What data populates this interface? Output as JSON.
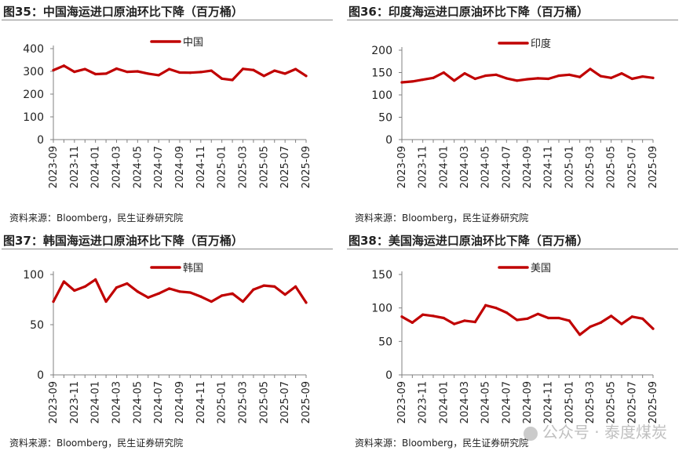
{
  "source_text": "资料来源：Bloomberg，民生证券研究院",
  "watermark": "公众号 · 泰度煤炭",
  "colors": {
    "series": "#c00000",
    "axis": "#808080",
    "text": "#222222"
  },
  "chart_data": [
    {
      "type": "line",
      "title": "图35：中国海运进口原油环比下降（百万桶）",
      "legend": "中国",
      "legend_position": "top-center",
      "ylim": [
        0,
        400
      ],
      "yticks": [
        0,
        100,
        200,
        300,
        400
      ],
      "x": [
        "2023-09",
        "2023-10",
        "2023-11",
        "2023-12",
        "2024-01",
        "2024-02",
        "2024-03",
        "2024-04",
        "2024-05",
        "2024-06",
        "2024-07",
        "2024-08",
        "2024-09",
        "2024-10",
        "2024-11",
        "2024-12",
        "2025-01",
        "2025-02",
        "2025-03",
        "2025-04",
        "2025-05",
        "2025-06",
        "2025-07",
        "2025-08",
        "2025-09"
      ],
      "xticklabels": [
        "2023-09",
        "2023-11",
        "2024-01",
        "2024-03",
        "2024-05",
        "2024-07",
        "2024-09",
        "2024-11",
        "2025-01",
        "2025-03",
        "2025-05",
        "2025-07",
        "2025-09"
      ],
      "values": [
        305,
        325,
        298,
        310,
        288,
        290,
        312,
        298,
        300,
        290,
        283,
        310,
        295,
        294,
        297,
        303,
        268,
        262,
        311,
        306,
        280,
        303,
        290,
        310,
        280
      ]
    },
    {
      "type": "line",
      "title": "图36：印度海运进口原油环比下降（百万桶）",
      "legend": "印度",
      "legend_position": "top-center",
      "ylim": [
        0,
        200
      ],
      "yticks": [
        0,
        50,
        100,
        150,
        200
      ],
      "x": [
        "2023-09",
        "2023-10",
        "2023-11",
        "2023-12",
        "2024-01",
        "2024-02",
        "2024-03",
        "2024-04",
        "2024-05",
        "2024-06",
        "2024-07",
        "2024-08",
        "2024-09",
        "2024-10",
        "2024-11",
        "2024-12",
        "2025-01",
        "2025-02",
        "2025-03",
        "2025-04",
        "2025-05",
        "2025-06",
        "2025-07",
        "2025-08",
        "2025-09"
      ],
      "xticklabels": [
        "2023-09",
        "2023-11",
        "2024-01",
        "2024-03",
        "2024-05",
        "2024-07",
        "2024-09",
        "2024-11",
        "2025-01",
        "2025-03",
        "2025-05",
        "2025-07",
        "2025-09"
      ],
      "values": [
        128,
        130,
        134,
        138,
        150,
        132,
        148,
        136,
        143,
        145,
        137,
        132,
        135,
        137,
        136,
        143,
        145,
        140,
        158,
        142,
        138,
        148,
        136,
        141,
        138
      ]
    },
    {
      "type": "line",
      "title": "图37：韩国海运进口原油环比下降（百万桶）",
      "legend": "韩国",
      "legend_position": "top-center",
      "ylim": [
        0,
        100
      ],
      "yticks": [
        0,
        50,
        100
      ],
      "x": [
        "2023-09",
        "2023-10",
        "2023-11",
        "2023-12",
        "2024-01",
        "2024-02",
        "2024-03",
        "2024-04",
        "2024-05",
        "2024-06",
        "2024-07",
        "2024-08",
        "2024-09",
        "2024-10",
        "2024-11",
        "2024-12",
        "2025-01",
        "2025-02",
        "2025-03",
        "2025-04",
        "2025-05",
        "2025-06",
        "2025-07",
        "2025-08",
        "2025-09"
      ],
      "xticklabels": [
        "2023-09",
        "2023-11",
        "2024-01",
        "2024-03",
        "2024-05",
        "2024-07",
        "2024-09",
        "2024-11",
        "2025-01",
        "2025-03",
        "2025-05",
        "2025-07",
        "2025-09"
      ],
      "values": [
        73,
        93,
        84,
        88,
        95,
        73,
        87,
        91,
        83,
        77,
        81,
        86,
        83,
        82,
        78,
        73,
        79,
        81,
        73,
        85,
        89,
        88,
        80,
        88,
        72
      ]
    },
    {
      "type": "line",
      "title": "图38：美国海运进口原油环比下降（百万桶）",
      "legend": "美国",
      "legend_position": "top-center",
      "ylim": [
        0,
        150
      ],
      "yticks": [
        0,
        50,
        100,
        150
      ],
      "x": [
        "2023-09",
        "2023-10",
        "2023-11",
        "2023-12",
        "2024-01",
        "2024-02",
        "2024-03",
        "2024-04",
        "2024-05",
        "2024-06",
        "2024-07",
        "2024-08",
        "2024-09",
        "2024-10",
        "2024-11",
        "2024-12",
        "2025-01",
        "2025-02",
        "2025-03",
        "2025-04",
        "2025-05",
        "2025-06",
        "2025-07",
        "2025-08",
        "2025-09"
      ],
      "xticklabels": [
        "2023-09",
        "2023-11",
        "2024-01",
        "2024-03",
        "2024-05",
        "2024-07",
        "2024-09",
        "2024-11",
        "2025-01",
        "2025-03",
        "2025-05",
        "2025-07",
        "2025-09"
      ],
      "values": [
        87,
        78,
        90,
        88,
        85,
        76,
        81,
        79,
        104,
        100,
        93,
        82,
        84,
        91,
        85,
        85,
        81,
        60,
        72,
        78,
        88,
        76,
        87,
        84,
        69
      ]
    }
  ]
}
